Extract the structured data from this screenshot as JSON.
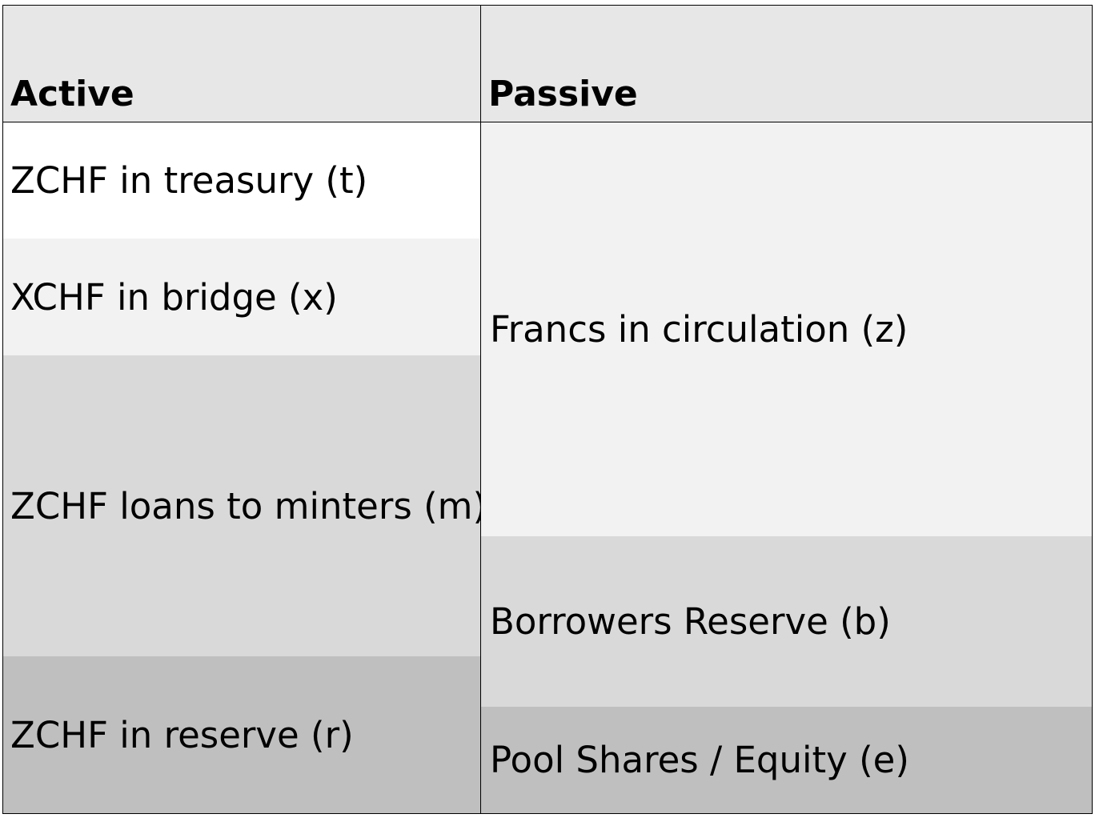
{
  "table": {
    "headers": {
      "active": "Active",
      "passive": "Passive"
    },
    "active": [
      {
        "label": "ZCHF in treasury (t)",
        "color": "#ffffff"
      },
      {
        "label": "XCHF in bridge (x)",
        "color": "#f2f2f2"
      },
      {
        "label": "ZCHF loans to minters (m)",
        "color": "#d9d9d9"
      },
      {
        "label": "ZCHF in reserve (r)",
        "color": "#bfbfbf"
      }
    ],
    "passive": [
      {
        "label": "Francs in circulation (z)",
        "color": "#f2f2f2"
      },
      {
        "label": "Borrowers Reserve (b)",
        "color": "#d9d9d9"
      },
      {
        "label": "Pool Shares / Equity (e)",
        "color": "#bfbfbf"
      }
    ],
    "header_color": "#e7e7e7"
  }
}
